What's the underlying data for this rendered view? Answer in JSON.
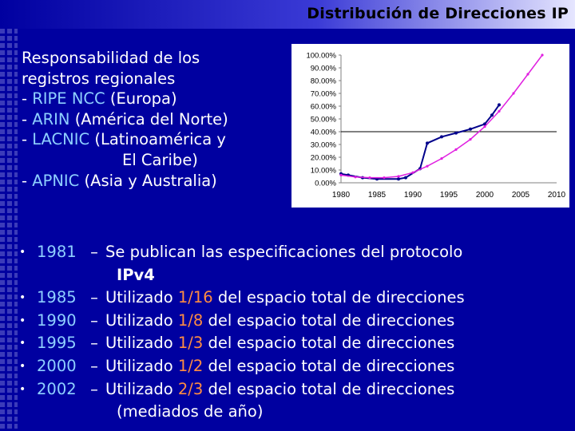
{
  "title": "Distribución de Direcciones IP",
  "responsibility": {
    "heading_line1": "Responsabilidad de los",
    "heading_line2": "registros regionales",
    "dash": "- ",
    "registries": [
      {
        "name": "RIPE NCC",
        "region": "(Europa)"
      },
      {
        "name": "ARIN",
        "region": "(América del Norte)"
      },
      {
        "name": "LACNIC",
        "region": "(Latinoamérica y",
        "region_cont": "El Caribe)"
      },
      {
        "name": "APNIC",
        "region": "(Asia y Australia)"
      }
    ]
  },
  "events": {
    "bullet": "•",
    "dash": "–",
    "items": [
      {
        "year": "1981",
        "text_a": "Se publican las especificaciones del protocolo",
        "text_cont": "IPv4"
      },
      {
        "year": "1985",
        "text_a": "Utilizado",
        "fraction": "1/16",
        "text_b": "del espacio total de direcciones"
      },
      {
        "year": "1990",
        "text_a": "Utilizado",
        "fraction": "1/8",
        "text_b": "del espacio total de direcciones"
      },
      {
        "year": "1995",
        "text_a": "Utilizado",
        "fraction": "1/3",
        "text_b": "del espacio total de direcciones"
      },
      {
        "year": "2000",
        "text_a": "Utilizado",
        "fraction": "1/2",
        "text_b": "del espacio total de direcciones"
      },
      {
        "year": "2002",
        "text_a": "Utilizado",
        "fraction": "2/3",
        "text_b": "del espacio total de direcciones",
        "text_cont": "(mediados de año)"
      }
    ]
  },
  "chart_data": {
    "type": "line",
    "title": "",
    "xlabel": "",
    "ylabel": "",
    "xlim": [
      1980,
      2010
    ],
    "ylim": [
      0,
      100
    ],
    "x_ticks": [
      "1980",
      "1985",
      "1990",
      "1995",
      "2000",
      "2005",
      "2010"
    ],
    "y_ticks": [
      "0.00%",
      "10.00%",
      "20.00%",
      "30.00%",
      "40.00%",
      "50.00%",
      "60.00%",
      "70.00%",
      "80.00%",
      "90.00%",
      "100.00%"
    ],
    "reference_line": 40,
    "grid": false,
    "legend": "none",
    "series": [
      {
        "color": "#00008B",
        "points": [
          [
            1980,
            7
          ],
          [
            1981,
            6
          ],
          [
            1983,
            4
          ],
          [
            1985,
            3
          ],
          [
            1988,
            3
          ],
          [
            1989,
            4
          ],
          [
            1991,
            11
          ],
          [
            1992,
            31
          ],
          [
            1994,
            36
          ],
          [
            1996,
            39
          ],
          [
            1998,
            42
          ],
          [
            2000,
            46
          ],
          [
            2001,
            53
          ],
          [
            2002,
            61
          ]
        ]
      },
      {
        "color": "#E020E0",
        "points": [
          [
            1980,
            6
          ],
          [
            1982,
            4.5
          ],
          [
            1984,
            4
          ],
          [
            1986,
            4
          ],
          [
            1988,
            5
          ],
          [
            1990,
            8
          ],
          [
            1992,
            13
          ],
          [
            1994,
            19
          ],
          [
            1996,
            26
          ],
          [
            1998,
            34
          ],
          [
            2000,
            44
          ],
          [
            2002,
            56
          ],
          [
            2004,
            70
          ],
          [
            2006,
            85
          ],
          [
            2008,
            100
          ]
        ]
      }
    ]
  }
}
